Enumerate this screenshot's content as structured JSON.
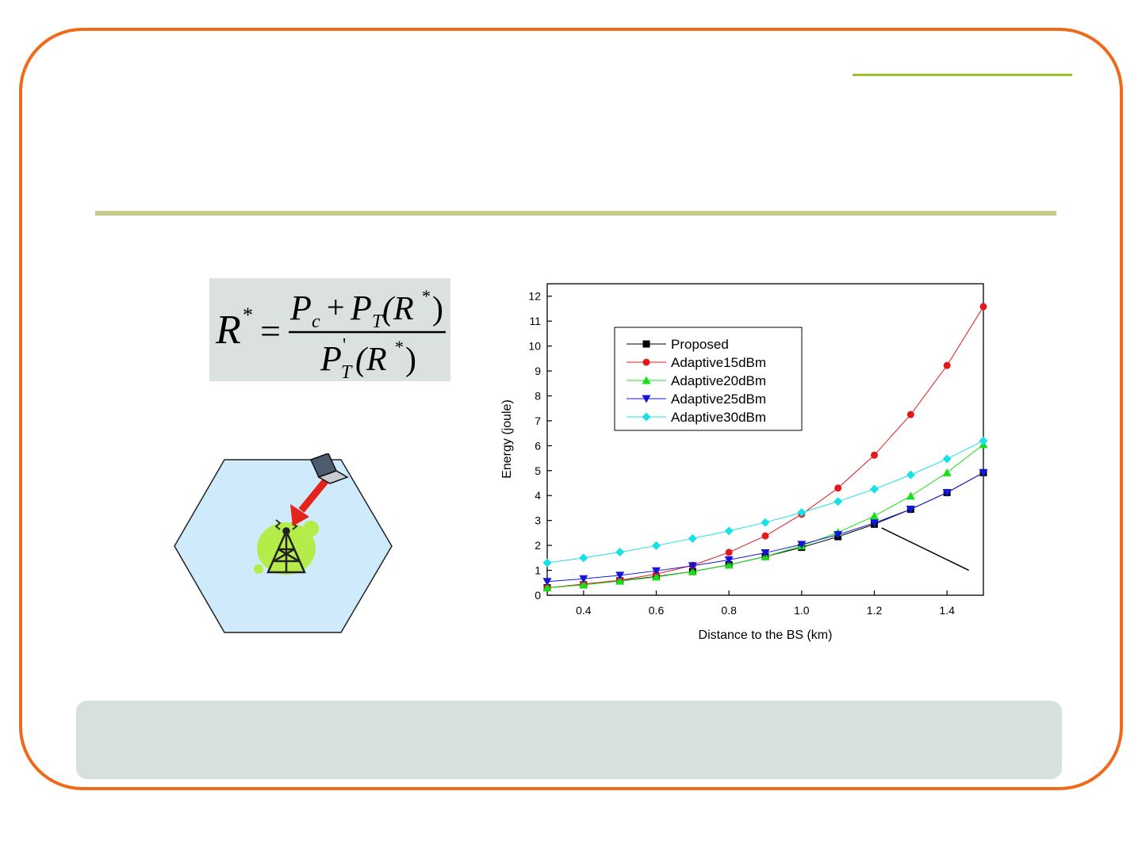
{
  "formula": {
    "lhs_symbol": "R",
    "star": "*",
    "equals": "=",
    "numerator_part1": "P",
    "numerator_sub1": "c",
    "plus": "+",
    "numerator_part2": "P",
    "numerator_sub2": "T",
    "numerator_arg": "(R",
    "numerator_arg_star": "*",
    "numerator_arg_close": ")",
    "denominator": "P",
    "denominator_prime": "'",
    "denominator_sub": "T",
    "denominator_arg": "(R",
    "denominator_arg_star": "*",
    "denominator_arg_close": ")"
  },
  "diagram": {
    "cell_color": "#cfeafb",
    "arrow_color": "#e3231c",
    "blob_color": "#b5ec4a",
    "icons": [
      "laptop-icon",
      "base-station-tower-icon"
    ]
  },
  "chart_data": {
    "type": "line",
    "title": "",
    "xlabel": "Distance to the BS (km)",
    "ylabel": "Energy (joule)",
    "xlim": [
      0.3,
      1.5
    ],
    "ylim": [
      0,
      12.5
    ],
    "xticks": [
      0.4,
      0.6,
      0.8,
      1.0,
      1.2,
      1.4
    ],
    "xtick_labels": [
      "0.4",
      "0.6",
      "0.8",
      "1.0",
      "1.2",
      "1.4"
    ],
    "yticks": [
      0,
      1,
      2,
      3,
      4,
      5,
      6,
      7,
      8,
      9,
      10,
      11,
      12
    ],
    "ytick_labels": [
      "0",
      "1",
      "2",
      "3",
      "4",
      "5",
      "6",
      "7",
      "8",
      "9",
      "10",
      "11",
      "12"
    ],
    "grid": false,
    "legend_position": "upper-left",
    "x": [
      0.3,
      0.4,
      0.5,
      0.6,
      0.7,
      0.8,
      0.9,
      1.0,
      1.1,
      1.2,
      1.3,
      1.4,
      1.5
    ],
    "series": [
      {
        "name": "Proposed",
        "color": "#000000",
        "marker": "square",
        "values": [
          0.3,
          0.42,
          0.58,
          0.75,
          0.95,
          1.22,
          1.55,
          1.92,
          2.35,
          2.85,
          3.45,
          4.12,
          4.92
        ]
      },
      {
        "name": "Adaptive15dBm",
        "color": "#e31a1c",
        "marker": "circle",
        "values": [
          0.3,
          0.45,
          0.6,
          0.85,
          1.2,
          1.72,
          2.38,
          3.25,
          4.3,
          5.62,
          7.25,
          9.22,
          11.58
        ]
      },
      {
        "name": "Adaptive20dBm",
        "color": "#18e018",
        "marker": "triangle-up",
        "values": [
          0.3,
          0.42,
          0.57,
          0.73,
          0.95,
          1.22,
          1.55,
          1.98,
          2.52,
          3.18,
          3.98,
          4.92,
          6.05
        ]
      },
      {
        "name": "Adaptive25dBm",
        "color": "#1515d8",
        "marker": "triangle-down",
        "values": [
          0.55,
          0.66,
          0.8,
          0.98,
          1.18,
          1.42,
          1.7,
          2.04,
          2.43,
          2.9,
          3.45,
          4.12,
          4.92
        ]
      },
      {
        "name": "Adaptive30dBm",
        "color": "#18e0e8",
        "marker": "diamond",
        "values": [
          1.3,
          1.5,
          1.73,
          1.99,
          2.28,
          2.58,
          2.92,
          3.32,
          3.76,
          4.26,
          4.83,
          5.47,
          6.2
        ]
      }
    ],
    "annotation_line": {
      "from": [
        1.22,
        2.7
      ],
      "to": [
        1.46,
        1.0
      ]
    }
  }
}
